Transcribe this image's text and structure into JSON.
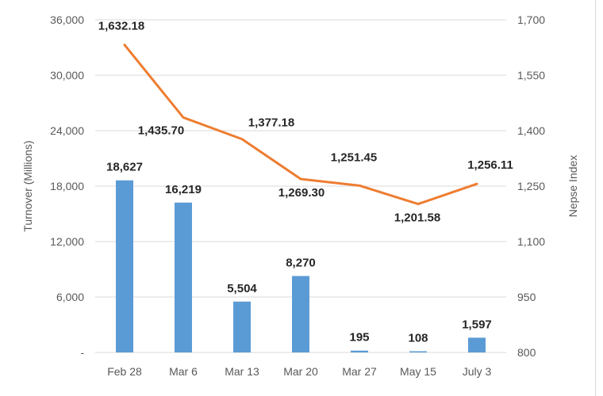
{
  "chart_data": {
    "type": "bar+line",
    "categories": [
      "Feb 28",
      "Mar 6",
      "Mar 13",
      "Mar 20",
      "Mar 27",
      "May 15",
      "July 3"
    ],
    "series": [
      {
        "name": "",
        "kind": "bar",
        "axis": "left",
        "color": "#5B9BD5",
        "values": [
          18627,
          16219,
          5504,
          8270,
          195,
          108,
          1597
        ],
        "labels": [
          "18,627",
          "16,219",
          "5,504",
          "8,270",
          "195",
          "108",
          "1,597"
        ]
      },
      {
        "name": "",
        "kind": "line",
        "axis": "right",
        "color": "#ED7D31",
        "values": [
          1632.18,
          1435.7,
          1377.18,
          1269.3,
          1251.45,
          1201.58,
          1256.11
        ],
        "labels": [
          "1,632.18",
          "1,435.70",
          "1,377.18",
          "1,269.30",
          "1,251.45",
          "1,201.58",
          "1,256.11"
        ]
      }
    ],
    "y_left": {
      "label": "Turnover (Millions)",
      "ylim": [
        0,
        36000
      ],
      "ticks": [
        0,
        6000,
        12000,
        18000,
        24000,
        30000,
        36000
      ],
      "tick_labels": [
        "-",
        "6,000",
        "12,000",
        "18,000",
        "24,000",
        "30,000",
        "36,000"
      ]
    },
    "y_right": {
      "label": "Nepse Index",
      "ylim": [
        800,
        1700
      ],
      "ticks": [
        800,
        950,
        1100,
        1250,
        1400,
        1550,
        1700
      ],
      "tick_labels": [
        "800",
        "950",
        "1,100",
        "1,250",
        "1,400",
        "1,550",
        "1,700"
      ]
    },
    "grid": true,
    "gridline_color": "#d9d9d9"
  }
}
